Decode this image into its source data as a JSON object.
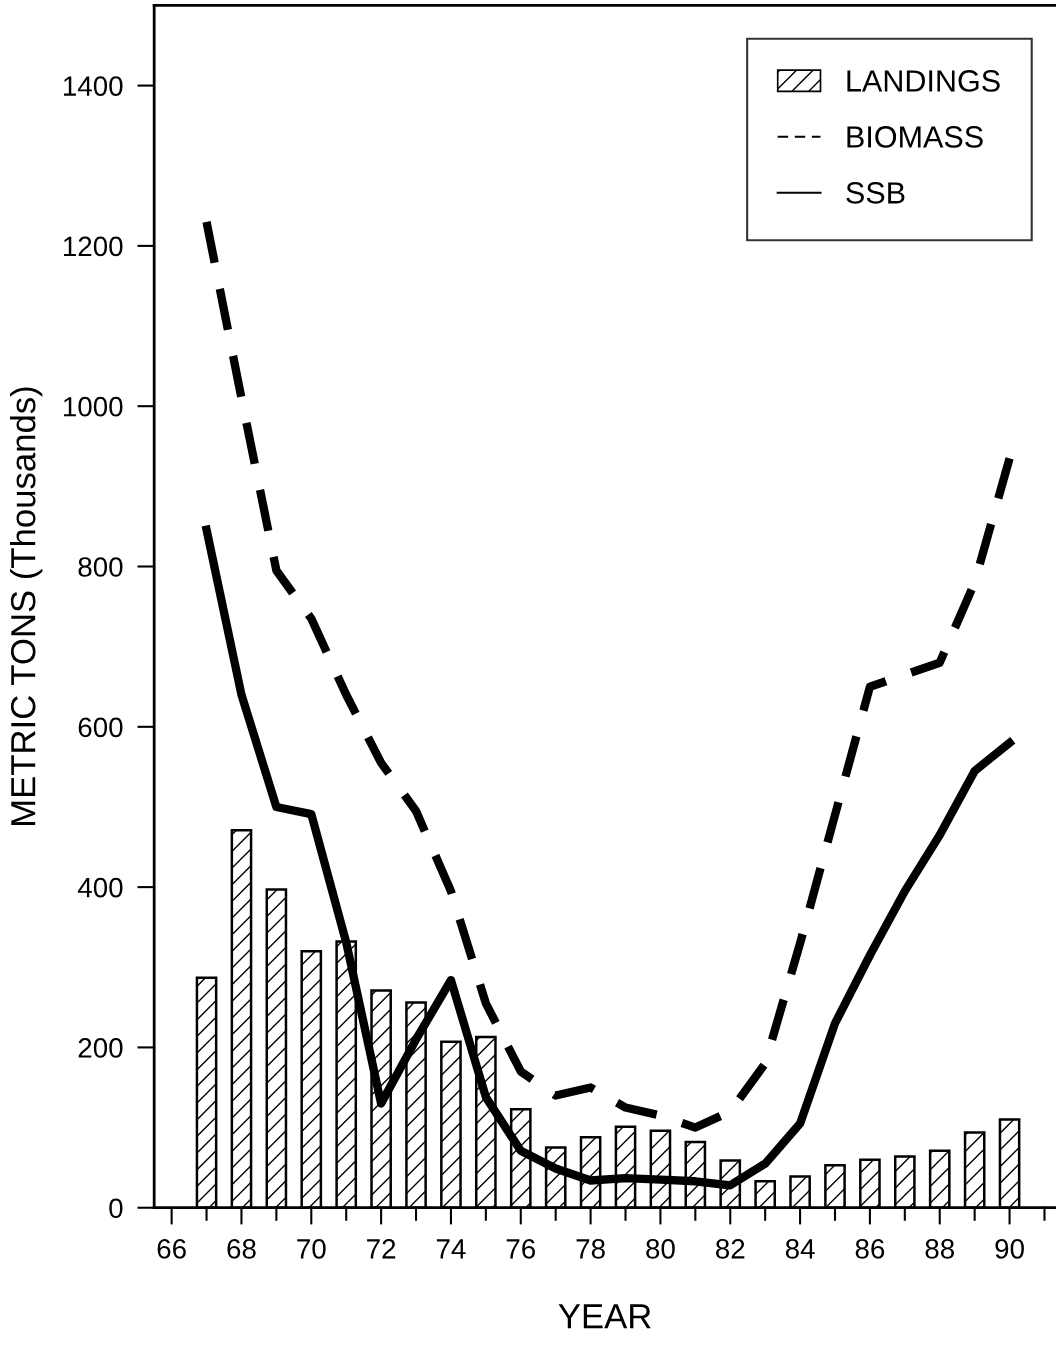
{
  "chart_data": {
    "type": "bar",
    "xlabel": "YEAR",
    "ylabel": "METRIC TONS (Thousands)",
    "xlim": [
      65.5,
      91.33
    ],
    "ylim": [
      0,
      1500
    ],
    "xticks": [
      66,
      {
        "value": 67,
        "label": null
      },
      68,
      {
        "value": 69,
        "label": null
      },
      70,
      {
        "value": 71,
        "label": null
      },
      72,
      {
        "value": 73,
        "label": null
      },
      74,
      {
        "value": 75,
        "label": null
      },
      76,
      {
        "value": 77,
        "label": null
      },
      78,
      {
        "value": 79,
        "label": null
      },
      80,
      {
        "value": 81,
        "label": null
      },
      82,
      {
        "value": 83,
        "label": null
      },
      84,
      {
        "value": 85,
        "label": null
      },
      86,
      {
        "value": 87,
        "label": null
      },
      88,
      {
        "value": 89,
        "label": null
      },
      90,
      {
        "value": 91,
        "label": null
      }
    ],
    "yticks": [
      0,
      200,
      400,
      600,
      800,
      1000,
      1200,
      1400
    ],
    "grid": false,
    "legend": "top right",
    "series": [
      {
        "name": "LANDINGS",
        "color": "#000000",
        "x": [
          67,
          68,
          69,
          70,
          71,
          72,
          73,
          74,
          75,
          76,
          77,
          78,
          79,
          80,
          81,
          82,
          83,
          84,
          85,
          86,
          87,
          88,
          89,
          90
        ],
        "values": [
          287,
          471,
          397,
          320,
          332,
          271,
          256,
          207,
          213,
          123,
          75,
          88,
          101,
          96,
          82,
          59,
          33,
          39,
          53,
          60,
          64,
          71,
          94,
          110
        ]
      },
      {
        "name": "BIOMASS",
        "type": "line",
        "line_style": "dashed",
        "color": "#000000",
        "x": [
          67,
          68,
          69,
          70,
          71,
          72,
          73,
          74,
          75,
          76,
          77,
          78,
          79,
          80,
          81,
          82,
          83,
          84,
          85,
          86,
          87,
          88,
          89,
          90
        ],
        "values": [
          1230,
          1010,
          795,
          735,
          640,
          555,
          495,
          395,
          255,
          170,
          140,
          150,
          125,
          115,
          100,
          120,
          180,
          330,
          490,
          650,
          665,
          680,
          780,
          935
        ]
      },
      {
        "name": "SSB",
        "type": "line",
        "line_style": "solid",
        "color": "#000000",
        "x": [
          67,
          68,
          69,
          70,
          71,
          72,
          73,
          74,
          75,
          76,
          77,
          78,
          79,
          80,
          81,
          82,
          83,
          84,
          85,
          86,
          87,
          88,
          89,
          90
        ],
        "values": [
          846,
          640,
          500,
          491,
          331,
          130,
          210,
          284,
          138,
          71,
          49,
          34,
          37,
          35,
          33,
          28,
          55,
          105,
          230,
          315,
          395,
          465,
          545,
          580
        ]
      }
    ]
  }
}
